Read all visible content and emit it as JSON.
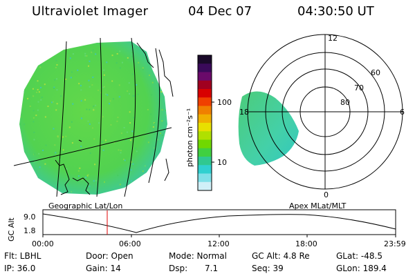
{
  "header": {
    "instrument": "Ultraviolet Imager",
    "date": "04 Dec 07",
    "time": "04:30:50 UT"
  },
  "colorbar": {
    "unit_label": "photon cm⁻²s⁻¹",
    "ticks": [
      "100",
      "10"
    ],
    "colors": [
      "#1a0a2a",
      "#3a0a5a",
      "#6a0a6a",
      "#a00020",
      "#d80000",
      "#f04000",
      "#f08000",
      "#f0b000",
      "#e8e000",
      "#b0e000",
      "#70d800",
      "#40d040",
      "#30c890",
      "#30d0d0",
      "#80e0e8",
      "#d0f0f8"
    ]
  },
  "geo_map": {
    "label": "Geographic Lat/Lon",
    "fill_color": "#5cd84c"
  },
  "polar_plot": {
    "label": "Apex MLat/MLT",
    "lat_labels": [
      "80",
      "70",
      "60"
    ],
    "mlt_labels": [
      "12",
      "18",
      "6",
      "0"
    ]
  },
  "altitude_plot": {
    "axis_title": "GC Alt",
    "y_ticks": [
      "9.0",
      "1.8"
    ],
    "x_ticks": [
      "00:00",
      "06:00",
      "12:00",
      "18:00",
      "23:59"
    ],
    "marker_color": "#e00000"
  },
  "footer": {
    "flt": "Flt: LBHL",
    "ip": "IP: 36.0",
    "door": "Door: Open",
    "gain": "Gain: 14",
    "mode": "Mode: Normal",
    "dsp_label": "Dsp:",
    "dsp_value": "7.1",
    "gc_alt": "GC Alt: 4.8 Re",
    "seq": "Seq: 39",
    "glat": "GLat: -48.5",
    "glon": "GLon: 189.4"
  }
}
